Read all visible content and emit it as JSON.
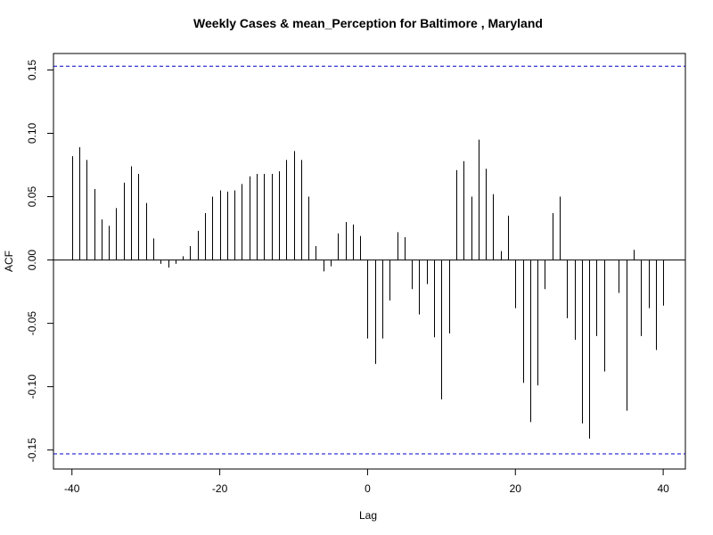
{
  "chart_data": {
    "type": "bar",
    "title": "Weekly Cases & mean_Perception for Baltimore , Maryland",
    "xlabel": "Lag",
    "ylabel": "ACF",
    "xlim": [
      -42.5,
      43.0
    ],
    "ylim": [
      -0.165,
      0.163
    ],
    "x_ticks": [
      -40,
      -20,
      0,
      20,
      40
    ],
    "x_tick_labels": [
      "-40",
      "-20",
      "0",
      "20",
      "40"
    ],
    "y_ticks": [
      -0.15,
      -0.1,
      -0.05,
      0.0,
      0.05,
      0.1,
      0.15
    ],
    "y_tick_labels": [
      "-0.15",
      "-0.10",
      "-0.05",
      "0.00",
      "0.05",
      "0.10",
      "0.15"
    ],
    "confidence_bound": 0.153,
    "colors": {
      "bars": "#000000",
      "confidence": "#0000cc",
      "zero_line": "#000000"
    },
    "series": [
      {
        "x": [
          -40,
          -39,
          -38,
          -37,
          -36,
          -35,
          -34,
          -33,
          -32,
          -31,
          -30,
          -29,
          -28,
          -27,
          -26,
          -25,
          -24,
          -23,
          -22,
          -21,
          -20,
          -19,
          -18,
          -17,
          -16,
          -15,
          -14,
          -13,
          -12,
          -11,
          -10,
          -9,
          -8,
          -7,
          -6,
          -5,
          -4,
          -3,
          -2,
          -1,
          0,
          1,
          2,
          3,
          4,
          5,
          6,
          7,
          8,
          9,
          10,
          11,
          12,
          13,
          14,
          15,
          16,
          17,
          18,
          19,
          20,
          21,
          22,
          23,
          24,
          25,
          26,
          27,
          28,
          29,
          30,
          31,
          32,
          33,
          34,
          35,
          36,
          37,
          38,
          39,
          40
        ],
        "values": [
          0.082,
          0.089,
          0.079,
          0.056,
          0.032,
          0.027,
          0.041,
          0.061,
          0.074,
          0.068,
          0.045,
          0.017,
          -0.003,
          -0.006,
          -0.003,
          0.003,
          0.011,
          0.023,
          0.037,
          0.05,
          0.055,
          0.054,
          0.055,
          0.06,
          0.066,
          0.068,
          0.068,
          0.068,
          0.07,
          0.079,
          0.086,
          0.079,
          0.05,
          0.011,
          -0.009,
          -0.005,
          0.021,
          0.03,
          0.028,
          0.019,
          -0.062,
          -0.082,
          -0.062,
          -0.032,
          0.022,
          0.018,
          -0.023,
          -0.043,
          -0.019,
          -0.061,
          -0.11,
          -0.058,
          0.071,
          0.078,
          0.05,
          0.095,
          0.072,
          0.052,
          0.007,
          0.035,
          -0.038,
          -0.097,
          -0.128,
          -0.099,
          -0.023,
          0.037,
          0.05,
          -0.046,
          -0.063,
          -0.129,
          -0.141,
          -0.06,
          -0.088,
          0.0,
          -0.026,
          -0.119,
          0.008,
          -0.06,
          -0.038,
          -0.071,
          -0.036
        ]
      }
    ]
  }
}
